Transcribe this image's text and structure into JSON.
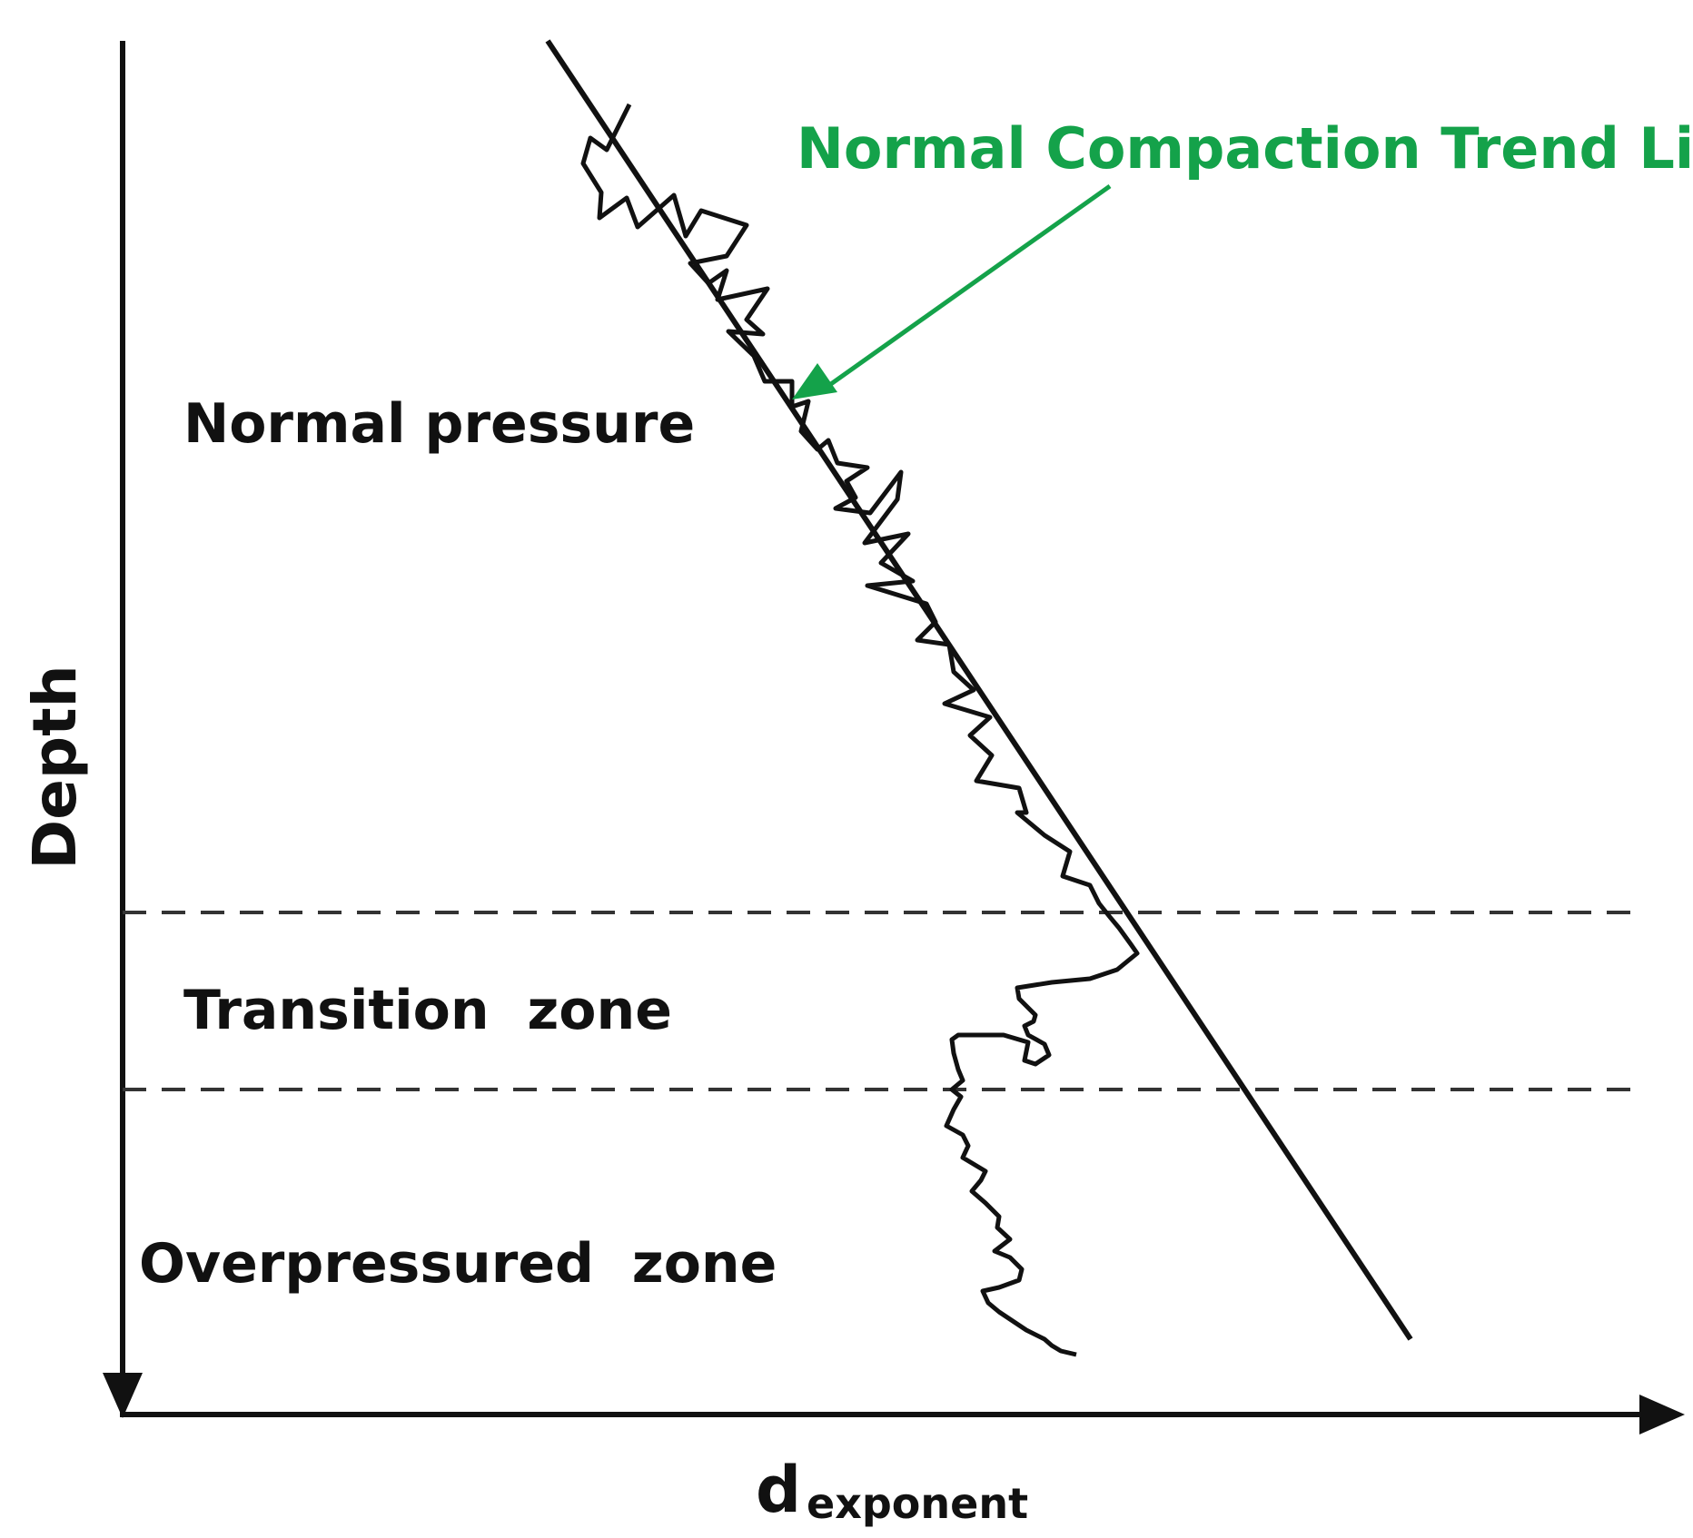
{
  "colors": {
    "ink": "#111111",
    "annotation_green": "#14a24a",
    "background": "#ffffff"
  },
  "axes": {
    "y_label": "Depth",
    "x_label_main": "d",
    "x_label_sub": "exponent"
  },
  "zones": {
    "normal": "Normal pressure",
    "transition": "Transition  zone",
    "overpressured": "Overpressured  zone"
  },
  "annotation": {
    "text": "Normal Compaction Trend Line"
  }
}
